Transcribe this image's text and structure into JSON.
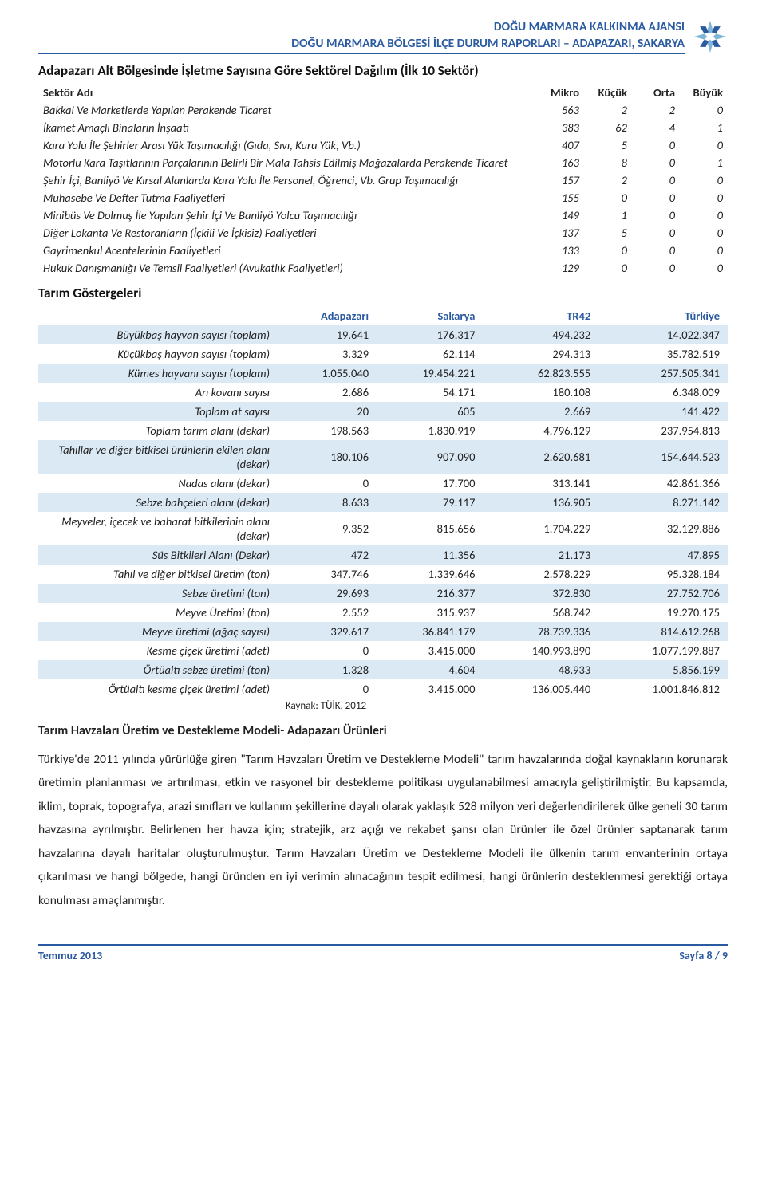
{
  "header": {
    "org": "DOĞU MARMARA KALKINMA AJANSI",
    "doc_title": "DOĞU MARMARA BÖLGESİ İLÇE DURUM RAPORLARI – ADAPAZARI, SAKARYA",
    "logo_colors": {
      "light": "#7fb5d6",
      "dark": "#2a5aa0"
    }
  },
  "colors": {
    "brand_blue": "#2a5aa0",
    "band_bg": "#dbe9f5",
    "text": "#222222",
    "background": "#ffffff"
  },
  "typography": {
    "body_fontsize": 15.5,
    "body_lineheight": 1.9,
    "title_fontsize": 17,
    "table_fontsize": 14.5
  },
  "sector_table": {
    "type": "table",
    "title": "Adapazarı Alt Bölgesinde İşletme Sayısına Göre Sektörel Dağılım (İlk 10 Sektör)",
    "columns": [
      "Sektör Adı",
      "Mikro",
      "Küçük",
      "Orta",
      "Büyük"
    ],
    "rows": [
      {
        "name": "Bakkal Ve Marketlerde Yapılan Perakende Ticaret",
        "v": [
          563,
          2,
          2,
          0
        ]
      },
      {
        "name": "İkamet Amaçlı Binaların İnşaatı",
        "v": [
          383,
          62,
          4,
          1
        ]
      },
      {
        "name": "Kara Yolu İle Şehirler Arası Yük Taşımacılığı (Gıda, Sıvı, Kuru Yük, Vb.)",
        "v": [
          407,
          5,
          0,
          0
        ]
      },
      {
        "name": "Motorlu Kara Taşıtlarının Parçalarının Belirli Bir Mala Tahsis Edilmiş Mağazalarda Perakende Ticaret",
        "v": [
          163,
          8,
          0,
          1
        ]
      },
      {
        "name": "Şehir İçi, Banliyö Ve Kırsal Alanlarda Kara Yolu İle Personel, Öğrenci, Vb. Grup Taşımacılığı",
        "v": [
          157,
          2,
          0,
          0
        ]
      },
      {
        "name": "Muhasebe Ve Defter Tutma Faaliyetleri",
        "v": [
          155,
          0,
          0,
          0
        ]
      },
      {
        "name": "Minibüs Ve Dolmuş İle Yapılan Şehir İçi Ve Banliyö Yolcu Taşımacılığı",
        "v": [
          149,
          1,
          0,
          0
        ]
      },
      {
        "name": "Diğer Lokanta Ve Restoranların (İçkili Ve İçkisiz) Faaliyetleri",
        "v": [
          137,
          5,
          0,
          0
        ]
      },
      {
        "name": "Gayrimenkul Acentelerinin Faaliyetleri",
        "v": [
          133,
          0,
          0,
          0
        ]
      },
      {
        "name": "Hukuk Danışmanlığı Ve Temsil Faaliyetleri (Avukatlık Faaliyetleri)",
        "v": [
          129,
          0,
          0,
          0
        ]
      }
    ]
  },
  "agri": {
    "type": "table",
    "title": "Tarım Göstergeleri",
    "columns": [
      "Adapazarı",
      "Sakarya",
      "TR42",
      "Türkiye"
    ],
    "rows": [
      {
        "label": "Büyükbaş hayvan sayısı (toplam)",
        "v": [
          "19.641",
          "176.317",
          "494.232",
          "14.022.347"
        ]
      },
      {
        "label": "Küçükbaş hayvan sayısı (toplam)",
        "v": [
          "3.329",
          "62.114",
          "294.313",
          "35.782.519"
        ]
      },
      {
        "label": "Kümes hayvanı sayısı (toplam)",
        "v": [
          "1.055.040",
          "19.454.221",
          "62.823.555",
          "257.505.341"
        ]
      },
      {
        "label": "Arı kovanı sayısı",
        "v": [
          "2.686",
          "54.171",
          "180.108",
          "6.348.009"
        ]
      },
      {
        "label": "Toplam at sayısı",
        "v": [
          "20",
          "605",
          "2.669",
          "141.422"
        ]
      },
      {
        "label": "Toplam tarım alanı (dekar)",
        "v": [
          "198.563",
          "1.830.919",
          "4.796.129",
          "237.954.813"
        ]
      },
      {
        "label": "Tahıllar ve diğer bitkisel ürünlerin ekilen alanı (dekar)",
        "v": [
          "180.106",
          "907.090",
          "2.620.681",
          "154.644.523"
        ]
      },
      {
        "label": "Nadas alanı (dekar)",
        "v": [
          "0",
          "17.700",
          "313.141",
          "42.861.366"
        ]
      },
      {
        "label": "Sebze bahçeleri alanı (dekar)",
        "v": [
          "8.633",
          "79.117",
          "136.905",
          "8.271.142"
        ]
      },
      {
        "label": "Meyveler, içecek ve baharat bitkilerinin alanı (dekar)",
        "v": [
          "9.352",
          "815.656",
          "1.704.229",
          "32.129.886"
        ]
      },
      {
        "label": "Süs Bitkileri Alanı (Dekar)",
        "v": [
          "472",
          "11.356",
          "21.173",
          "47.895"
        ]
      },
      {
        "label": "Tahıl ve diğer bitkisel üretim (ton)",
        "v": [
          "347.746",
          "1.339.646",
          "2.578.229",
          "95.328.184"
        ]
      },
      {
        "label": "Sebze üretimi (ton)",
        "v": [
          "29.693",
          "216.377",
          "372.830",
          "27.752.706"
        ]
      },
      {
        "label": "Meyve Üretimi (ton)",
        "v": [
          "2.552",
          "315.937",
          "568.742",
          "19.270.175"
        ]
      },
      {
        "label": "Meyve üretimi (ağaç sayısı)",
        "v": [
          "329.617",
          "36.841.179",
          "78.739.336",
          "814.612.268"
        ]
      },
      {
        "label": "Kesme çiçek üretimi (adet)",
        "v": [
          "0",
          "3.415.000",
          "140.993.890",
          "1.077.199.887"
        ]
      },
      {
        "label": "Örtüaltı sebze üretimi (ton)",
        "v": [
          "1.328",
          "4.604",
          "48.933",
          "5.856.199"
        ]
      },
      {
        "label": "Örtüaltı kesme çiçek üretimi (adet)",
        "v": [
          "0",
          "3.415.000",
          "136.005.440",
          "1.001.846.812"
        ]
      }
    ],
    "source": "Kaynak: TÜİK, 2012"
  },
  "model_section": {
    "title": "Tarım Havzaları Üretim ve Destekleme Modeli-  Adapazarı Ürünleri",
    "paragraph": "Türkiye'de 2011 yılında yürürlüğe giren \"Tarım Havzaları Üretim ve Destekleme Modeli\" tarım havzalarında doğal kaynakların korunarak üretimin planlanması ve artırılması, etkin ve rasyonel bir destekleme politikası uygulanabilmesi amacıyla geliştirilmiştir. Bu kapsamda, iklim, toprak, topografya, arazi sınıfları ve kullanım şekillerine dayalı olarak yaklaşık 528 milyon veri değerlendirilerek ülke geneli 30 tarım havzasına ayrılmıştır. Belirlenen her havza için; stratejik, arz açığı ve rekabet şansı olan ürünler ile özel ürünler saptanarak tarım havzalarına dayalı haritalar oluşturulmuştur. Tarım Havzaları Üretim ve Destekleme Modeli ile ülkenin tarım envanterinin ortaya çıkarılması ve hangi bölgede, hangi üründen en iyi verimin alınacağının tespit edilmesi, hangi ürünlerin desteklenmesi gerektiği ortaya konulması amaçlanmıştır."
  },
  "footer": {
    "left": "Temmuz 2013",
    "right": "Sayfa 8 / 9"
  }
}
